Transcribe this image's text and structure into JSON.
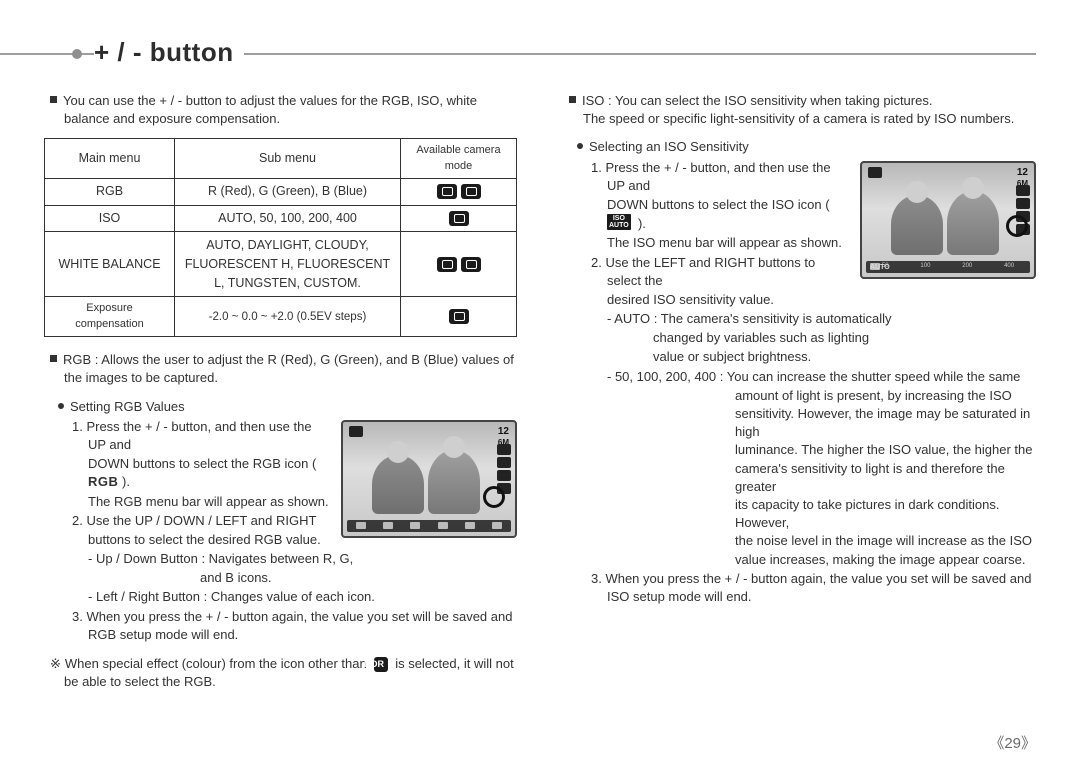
{
  "page_number": "《29》",
  "header": {
    "title": "+ / - button"
  },
  "left": {
    "intro": "You can use the + / - button to adjust the values for the RGB, ISO, white balance and exposure compensation.",
    "table": {
      "headers": {
        "main": "Main menu",
        "sub": "Sub menu",
        "mode": "Available camera mode"
      },
      "rows": [
        {
          "main": "RGB",
          "sub": "R (Red), G (Green), B (Blue)",
          "mode_icons": 2
        },
        {
          "main": "ISO",
          "sub": "AUTO, 50, 100, 200, 400",
          "mode_icons": 1
        },
        {
          "main": "WHITE BALANCE",
          "sub": "AUTO, DAYLIGHT, CLOUDY, FLUORESCENT H, FLUORESCENT L, TUNGSTEN, CUSTOM.",
          "mode_icons": 2
        },
        {
          "main": "Exposure compensation",
          "sub": "-2.0 ~ 0.0 ~ +2.0 (0.5EV steps)",
          "mode_icons": 1
        }
      ]
    },
    "rgb_desc": "RGB : Allows the user to adjust the R (Red), G (Green), and B (Blue) values of the images to be captured.",
    "rgb_setting_head": "Setting RGB Values",
    "rgb_steps": {
      "s1a": "1. Press the + / - button, and then use the UP and",
      "s1b": "DOWN buttons to select the RGB icon (",
      "s1_icon": "RGB",
      "s1c": ").",
      "s1d": "The RGB menu bar will appear as shown.",
      "s2a": "2. Use the UP / DOWN / LEFT and RIGHT",
      "s2b": "buttons to select the desired RGB value.",
      "s2c": "- Up / Down Button  : Navigates between R, G,",
      "s2c2": "and B icons.",
      "s2d": "- Left / Right Button : Changes value of each icon.",
      "s3": "3. When you press the + / - button again, the value you set will be saved and RGB setup mode will end."
    },
    "note_pre": "When special effect (colour) from the icon other than",
    "note_badge": "NOR",
    "note_post": "is selected, it will not be able to select the RGB."
  },
  "right": {
    "iso_intro1": "ISO : You can select the ISO sensitivity when taking pictures.",
    "iso_intro2": "The speed or specific light-sensitivity of a camera is rated by ISO numbers.",
    "iso_setting_head": "Selecting an ISO Sensitivity",
    "iso_steps": {
      "s1a": "1. Press the + / - button, and then use the UP and",
      "s1b": "DOWN buttons to select the ISO icon (",
      "s1_icon": "ISO\nAUTO",
      "s1c": ").",
      "s1d": "The ISO menu bar will appear as shown.",
      "s2a": "2. Use the LEFT and RIGHT buttons to select the",
      "s2b": "desired ISO sensitivity value.",
      "s2c": "- AUTO : The camera's sensitivity is automatically",
      "s2c2": "changed by variables such as lighting",
      "s2c3": "value or subject brightness.",
      "s2d": "- 50, 100, 200, 400 : You can increase the shutter speed while the same",
      "s2d_cont": [
        "amount of light is present, by increasing the ISO",
        "sensitivity. However, the image may be saturated in high",
        "luminance. The higher the ISO value, the higher the",
        "camera's sensitivity to light is and therefore the greater",
        "its capacity to take pictures in dark conditions. However,",
        "the noise level in the image will increase as the ISO",
        "value increases, making the image appear coarse."
      ],
      "s3": "3. When you press the + / - button again, the value you set will be saved and ISO setup mode will end."
    },
    "lcd_bottombar": [
      "AUTO",
      "50",
      "100",
      "200",
      "400"
    ]
  }
}
